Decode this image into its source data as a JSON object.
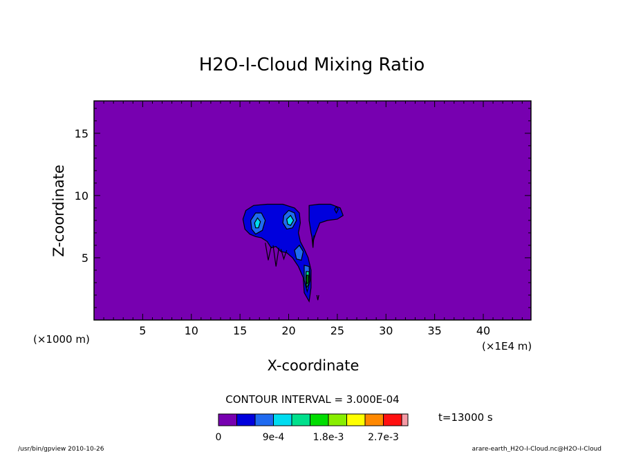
{
  "chart_data": {
    "type": "heatmap",
    "title": "H2O-I-Cloud Mixing Ratio",
    "xlabel": "X-coordinate",
    "ylabel": "Z-coordinate",
    "x_unit_left": "(×1000 m)",
    "x_unit_right": "(×1E4 m)",
    "xlim": [
      0,
      44.9
    ],
    "ylim": [
      0,
      17.6
    ],
    "x_ticks": [
      5,
      10,
      15,
      20,
      25,
      30,
      35,
      40
    ],
    "y_ticks": [
      5,
      10,
      15
    ],
    "contour_interval_label": "CONTOUR INTERVAL = 3.000E-04",
    "time_label": "t=13000 s",
    "colorbar": {
      "labels": [
        {
          "text": "0",
          "index": 0
        },
        {
          "text": "9e-4",
          "index": 3
        },
        {
          "text": "1.8e-3",
          "index": 6
        },
        {
          "text": "2.7e-3",
          "index": 9
        }
      ],
      "colors": [
        "#7700b0",
        "#0000dd",
        "#1f6af0",
        "#00dcf0",
        "#00e08c",
        "#00dc00",
        "#88ee00",
        "#ffff00",
        "#ff8800",
        "#ff1010",
        "#f59aa5"
      ]
    },
    "background_color": "#7700b0",
    "cloud_regions": [
      {
        "level": 1,
        "points": [
          [
            15.3,
            8.1
          ],
          [
            15.6,
            8.8
          ],
          [
            16.4,
            9.2
          ],
          [
            17.8,
            9.3
          ],
          [
            19.4,
            9.3
          ],
          [
            20.6,
            9.0
          ],
          [
            21.1,
            8.6
          ],
          [
            21.2,
            7.8
          ],
          [
            21.0,
            7.0
          ],
          [
            21.2,
            6.3
          ],
          [
            21.6,
            5.7
          ],
          [
            22.0,
            5.0
          ],
          [
            22.3,
            4.0
          ],
          [
            22.3,
            2.6
          ],
          [
            22.1,
            1.5
          ],
          [
            21.6,
            2.2
          ],
          [
            21.5,
            3.4
          ],
          [
            21.0,
            4.3
          ],
          [
            20.4,
            5.0
          ],
          [
            19.8,
            5.4
          ],
          [
            19.2,
            5.5
          ],
          [
            18.7,
            5.9
          ],
          [
            18.2,
            5.8
          ],
          [
            17.8,
            6.3
          ],
          [
            17.2,
            6.6
          ],
          [
            16.6,
            6.7
          ],
          [
            16.0,
            6.9
          ],
          [
            15.5,
            7.3
          ]
        ]
      },
      {
        "level": 1,
        "points": [
          [
            22.1,
            9.2
          ],
          [
            23.1,
            9.3
          ],
          [
            24.3,
            9.3
          ],
          [
            25.3,
            9.0
          ],
          [
            25.6,
            8.4
          ],
          [
            25.0,
            8.1
          ],
          [
            24.0,
            8.0
          ],
          [
            23.2,
            7.8
          ],
          [
            22.8,
            7.0
          ],
          [
            22.5,
            6.3
          ],
          [
            22.3,
            7.0
          ],
          [
            22.1,
            8.0
          ]
        ]
      },
      {
        "level": 2,
        "points": [
          [
            16.1,
            8.0
          ],
          [
            16.6,
            8.6
          ],
          [
            17.2,
            8.6
          ],
          [
            17.6,
            8.0
          ],
          [
            17.3,
            7.2
          ],
          [
            16.6,
            6.9
          ],
          [
            16.2,
            7.3
          ]
        ]
      },
      {
        "level": 2,
        "points": [
          [
            19.5,
            8.4
          ],
          [
            20.0,
            8.8
          ],
          [
            20.6,
            8.6
          ],
          [
            20.8,
            8.0
          ],
          [
            20.4,
            7.4
          ],
          [
            19.8,
            7.3
          ],
          [
            19.4,
            7.8
          ]
        ]
      },
      {
        "level": 2,
        "points": [
          [
            20.6,
            5.6
          ],
          [
            21.1,
            6.0
          ],
          [
            21.5,
            5.5
          ],
          [
            21.3,
            4.8
          ],
          [
            20.8,
            4.9
          ]
        ]
      },
      {
        "level": 2,
        "points": [
          [
            21.6,
            4.4
          ],
          [
            22.1,
            4.3
          ],
          [
            22.2,
            3.2
          ],
          [
            21.9,
            2.3
          ],
          [
            21.6,
            3.2
          ]
        ]
      },
      {
        "level": 3,
        "points": [
          [
            16.5,
            7.8
          ],
          [
            16.8,
            8.2
          ],
          [
            17.1,
            7.9
          ],
          [
            16.9,
            7.4
          ],
          [
            16.6,
            7.4
          ]
        ]
      },
      {
        "level": 3,
        "points": [
          [
            19.8,
            8.1
          ],
          [
            20.2,
            8.4
          ],
          [
            20.5,
            8.0
          ],
          [
            20.2,
            7.6
          ],
          [
            19.9,
            7.7
          ]
        ]
      },
      {
        "level": 4,
        "points": [
          [
            21.8,
            3.9
          ],
          [
            22.1,
            3.9
          ],
          [
            22.1,
            3.0
          ],
          [
            21.85,
            2.6
          ],
          [
            21.75,
            3.2
          ]
        ]
      },
      {
        "level": 5,
        "points": [
          [
            21.85,
            3.6
          ],
          [
            22.0,
            3.6
          ],
          [
            22.0,
            3.0
          ],
          [
            21.85,
            2.9
          ]
        ]
      }
    ],
    "contour_lines": [
      [
        [
          17.6,
          6.2
        ],
        [
          17.9,
          4.8
        ],
        [
          18.2,
          5.9
        ]
      ],
      [
        [
          18.4,
          6.0
        ],
        [
          18.7,
          4.3
        ],
        [
          19.0,
          5.8
        ]
      ],
      [
        [
          19.2,
          5.7
        ],
        [
          19.5,
          4.9
        ],
        [
          19.8,
          5.6
        ]
      ],
      [
        [
          22.4,
          6.6
        ],
        [
          22.5,
          5.8
        ],
        [
          22.6,
          6.8
        ]
      ],
      [
        [
          22.9,
          2.0
        ],
        [
          23.0,
          1.6
        ],
        [
          23.1,
          2.0
        ]
      ],
      [
        [
          24.7,
          8.9
        ],
        [
          24.9,
          8.6
        ],
        [
          25.1,
          8.9
        ],
        [
          24.9,
          9.1
        ],
        [
          24.7,
          8.9
        ]
      ]
    ]
  },
  "footer": {
    "left": "/usr/bin/gpview  2010-10-26",
    "right": "arare-earth_H2O-I-Cloud.nc@H2O-I-Cloud"
  }
}
